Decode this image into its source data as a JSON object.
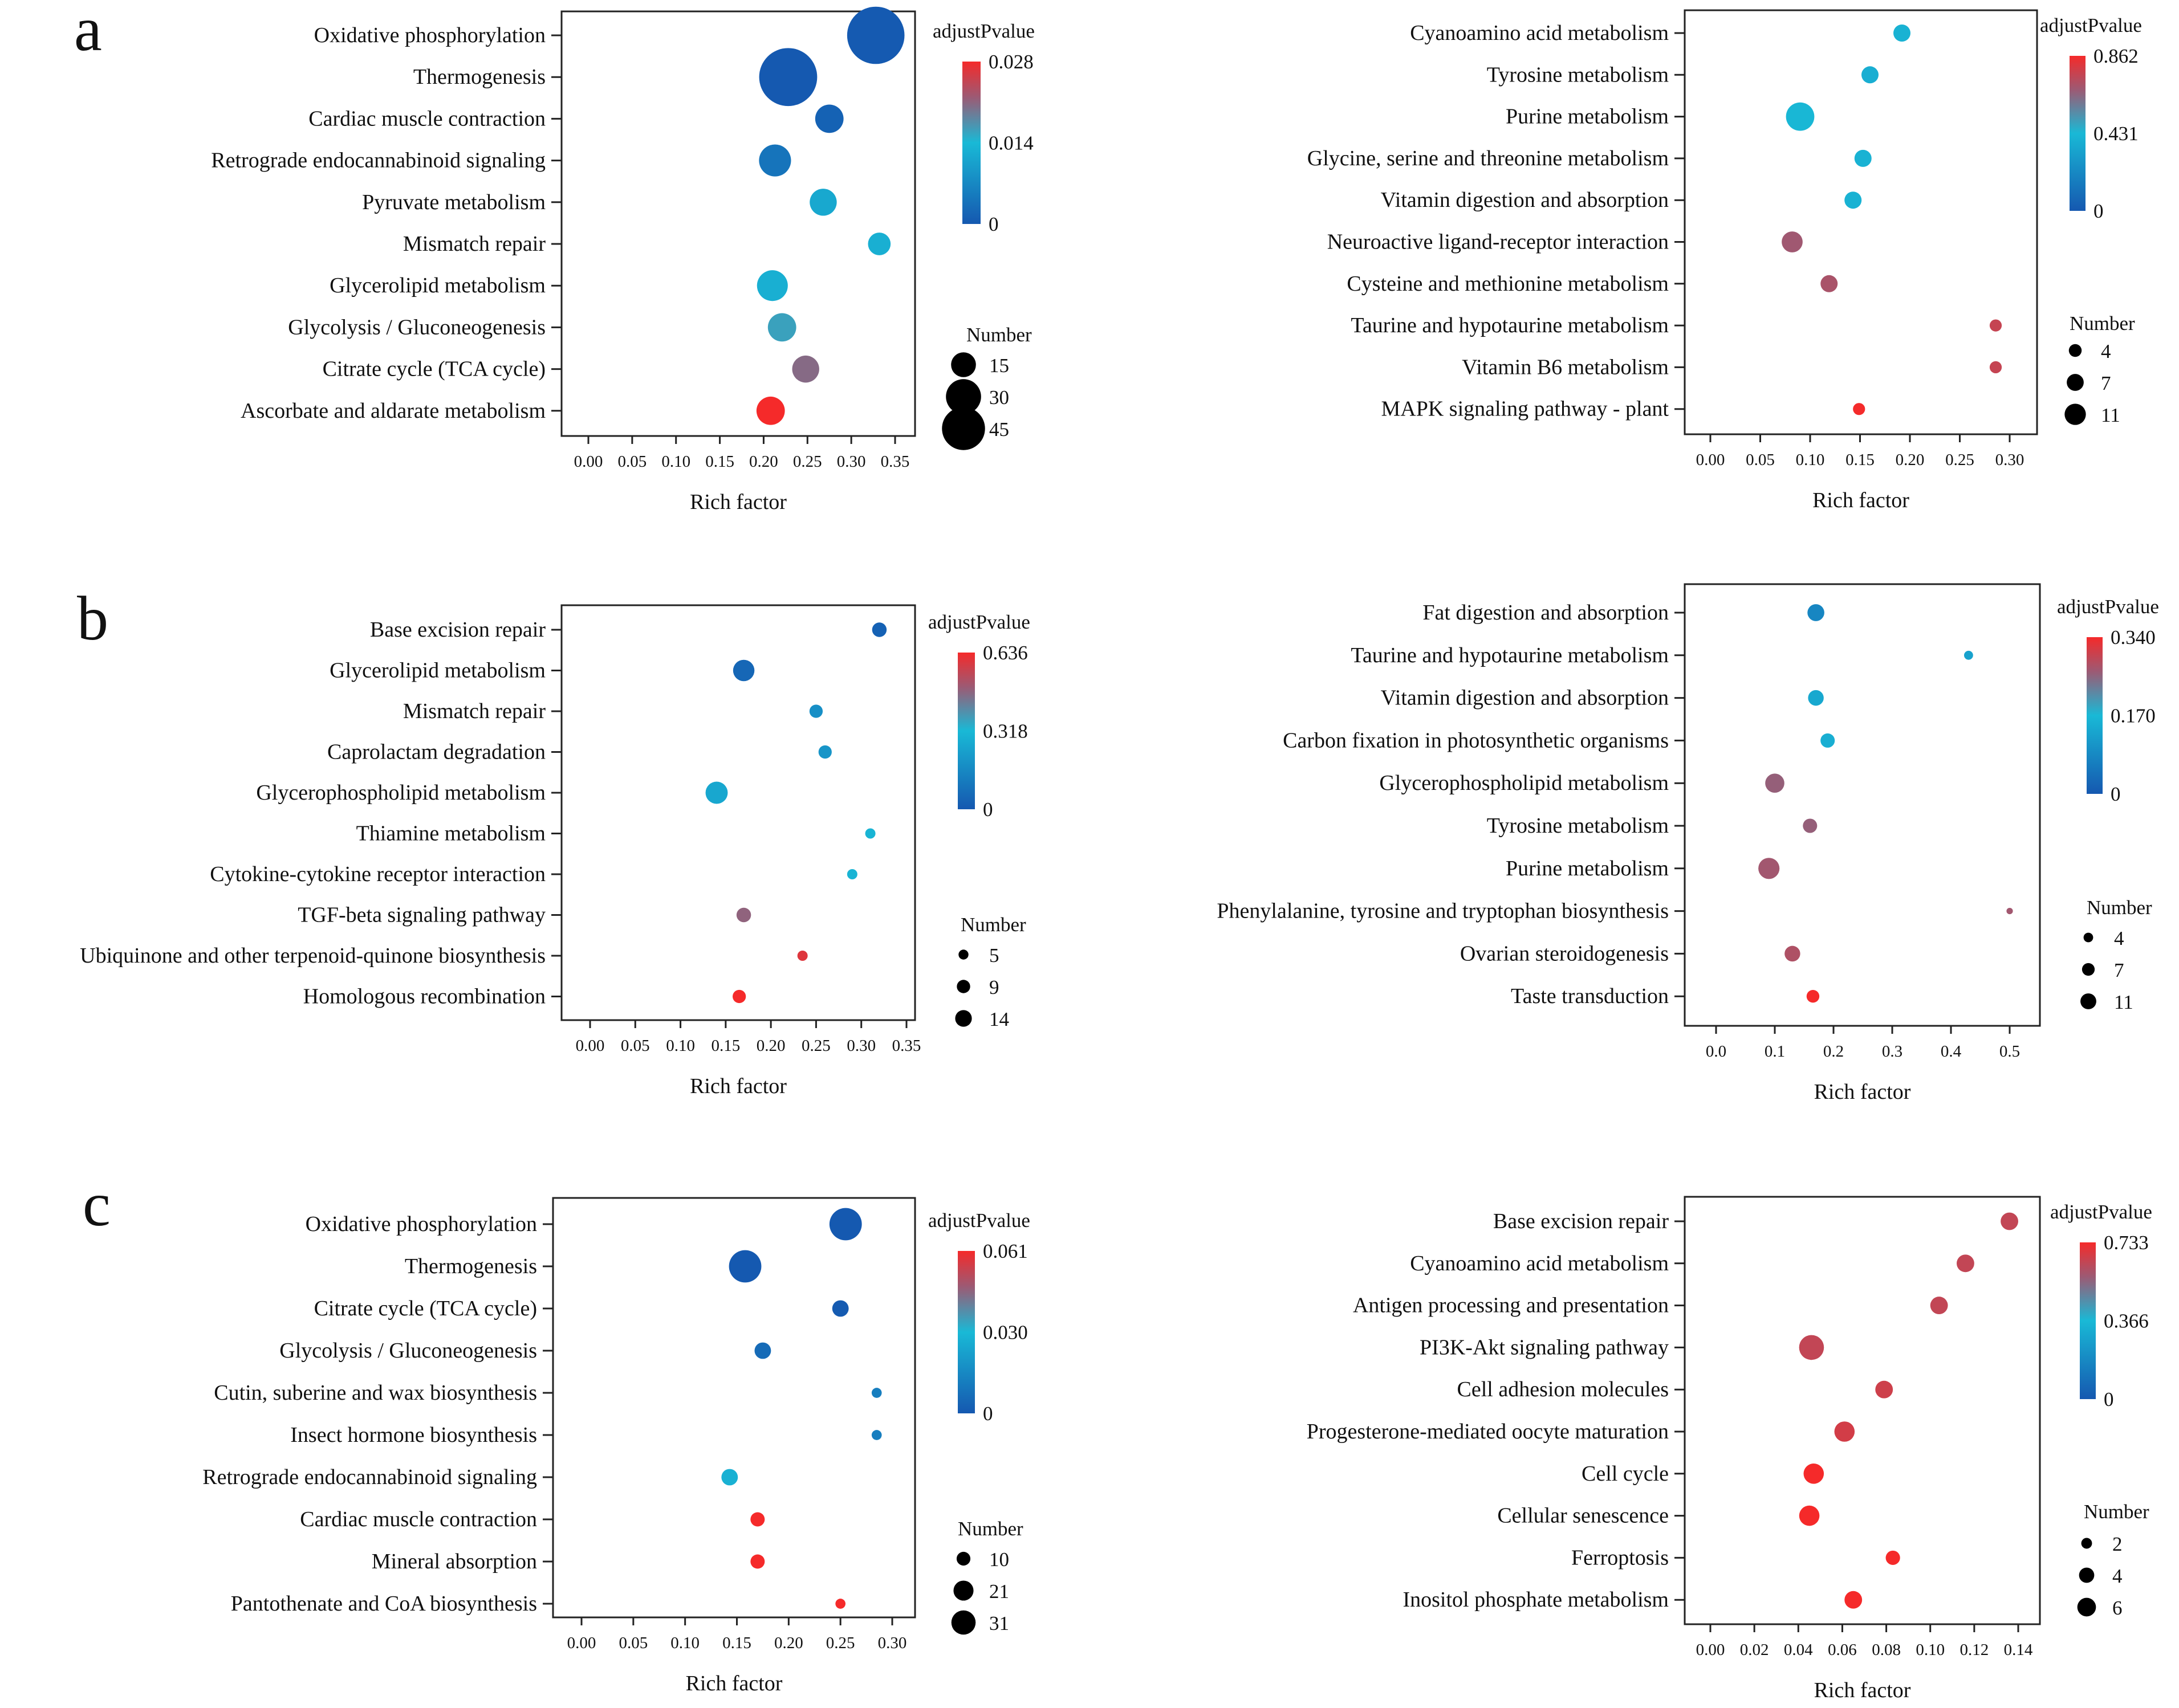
{
  "figure": {
    "panel_labels": [
      "a",
      "b",
      "c"
    ],
    "colorbar_title": "adjustPvalue",
    "size_legend_title": "Number",
    "xlabel": "Rich factor"
  },
  "colors": {
    "highlight_text": "#e8302a",
    "normal_text": "#111111",
    "scale_low": "#1558b0",
    "scale_mid": "#19b9d6",
    "scale_high": "#f52a2a",
    "scale_mid_high": "#9c5a74"
  },
  "chart_data": [
    {
      "panel": "a",
      "side": "left",
      "type": "scatter",
      "xlabel": "Rich factor",
      "xlim": [
        0,
        0.35
      ],
      "xticks": [
        "0.00",
        "0.05",
        "0.10",
        "0.15",
        "0.20",
        "0.25",
        "0.30",
        "0.35"
      ],
      "colorbar": {
        "title": "adjustPvalue",
        "ticks": [
          "0.028",
          "0.014",
          "0"
        ],
        "max": 0.028
      },
      "size_legend": {
        "title": "Number",
        "values": [
          15,
          30,
          45
        ]
      },
      "categories": [
        "Oxidative phosphorylation",
        "Thermogenesis",
        "Cardiac muscle contraction",
        "Retrograde endocannabinoid signaling",
        "Pyruvate metabolism",
        "Mismatch repair",
        "Glycerolipid metabolism",
        "Glycolysis / Gluconeogenesis",
        "Citrate cycle (TCA cycle)",
        "Ascorbate and aldarate metabolism"
      ],
      "highlighted": [
        true,
        true,
        false,
        false,
        false,
        false,
        false,
        true,
        true,
        true
      ],
      "x": [
        0.328,
        0.228,
        0.275,
        0.213,
        0.268,
        0.332,
        0.21,
        0.221,
        0.248,
        0.208
      ],
      "number": [
        45,
        46,
        11,
        14,
        10,
        7,
        13,
        11,
        10,
        11
      ],
      "adjustPvalue": [
        0.0003,
        0.0001,
        0.0015,
        0.004,
        0.0115,
        0.0125,
        0.0125,
        0.016,
        0.0205,
        0.028
      ]
    },
    {
      "panel": "a",
      "side": "right",
      "type": "scatter",
      "xlabel": "Rich factor",
      "xlim": [
        0,
        0.3
      ],
      "xticks": [
        "0.00",
        "0.05",
        "0.10",
        "0.15",
        "0.20",
        "0.25",
        "0.30"
      ],
      "colorbar": {
        "title": "adjustPvalue",
        "ticks": [
          "0.862",
          "0.431",
          "0"
        ],
        "max": 0.862
      },
      "size_legend": {
        "title": "Number",
        "values": [
          4,
          7,
          11
        ]
      },
      "categories": [
        "Cyanoamino acid metabolism",
        "Tyrosine metabolism",
        "Purine metabolism",
        "Glycine, serine and threonine metabolism",
        "Vitamin digestion and absorption",
        "Neuroactive ligand-receptor interaction",
        "Cysteine and methionine metabolism",
        "Taurine and hypotaurine metabolism",
        "Vitamin B6 metabolism",
        "MAPK signaling pathway - plant"
      ],
      "highlighted": [
        false,
        false,
        false,
        false,
        false,
        false,
        false,
        false,
        false,
        false
      ],
      "x": [
        0.192,
        0.16,
        0.09,
        0.153,
        0.143,
        0.082,
        0.119,
        0.286,
        0.286,
        0.149
      ],
      "number": [
        4,
        4,
        11,
        4,
        4,
        6,
        4,
        2,
        2,
        2
      ],
      "adjustPvalue": [
        0.4,
        0.38,
        0.42,
        0.4,
        0.4,
        0.68,
        0.7,
        0.76,
        0.76,
        0.86
      ]
    },
    {
      "panel": "b",
      "side": "left",
      "type": "scatter",
      "xlabel": "Rich factor",
      "xlim": [
        0,
        0.35
      ],
      "xticks": [
        "0.00",
        "0.05",
        "0.10",
        "0.15",
        "0.20",
        "0.25",
        "0.30",
        "0.35"
      ],
      "colorbar": {
        "title": "adjustPvalue",
        "ticks": [
          "0.636",
          "0.318",
          "0"
        ],
        "max": 0.636
      },
      "size_legend": {
        "title": "Number",
        "values": [
          5,
          9,
          14
        ]
      },
      "categories": [
        "Base excision repair",
        "Glycerolipid metabolism",
        "Mismatch repair",
        "Caprolactam degradation",
        "Glycerophospholipid metabolism",
        "Thiamine metabolism",
        "Cytokine-cytokine receptor interaction",
        "TGF-beta signaling pathway",
        "Ubiquinone and other terpenoid-quinone biosynthesis",
        "Homologous recombination"
      ],
      "highlighted": [
        false,
        true,
        false,
        false,
        false,
        false,
        false,
        false,
        false,
        false
      ],
      "x": [
        0.32,
        0.17,
        0.25,
        0.26,
        0.14,
        0.31,
        0.29,
        0.17,
        0.235,
        0.165
      ],
      "number": [
        6,
        13,
        5,
        5,
        14,
        3,
        3,
        6,
        3,
        5
      ],
      "adjustPvalue": [
        0.03,
        0.05,
        0.18,
        0.2,
        0.26,
        0.3,
        0.3,
        0.48,
        0.6,
        0.636
      ]
    },
    {
      "panel": "b",
      "side": "right",
      "type": "scatter",
      "xlabel": "Rich factor",
      "xlim": [
        0,
        0.5
      ],
      "xticks": [
        "0.0",
        "0.1",
        "0.2",
        "0.3",
        "0.4",
        "0.5"
      ],
      "colorbar": {
        "title": "adjustPvalue",
        "ticks": [
          "0.340",
          "0.170",
          "0"
        ],
        "max": 0.34
      },
      "size_legend": {
        "title": "Number",
        "values": [
          4,
          7,
          11
        ]
      },
      "categories": [
        "Fat digestion and absorption",
        "Taurine and hypotaurine metabolism",
        "Vitamin digestion and absorption",
        "Carbon fixation in photosynthetic organisms",
        "Glycerophospholipid metabolism",
        "Tyrosine metabolism",
        "Purine metabolism",
        "Phenylalanine, tyrosine and tryptophan biosynthesis",
        "Ovarian steroidogenesis",
        "Taste transduction"
      ],
      "highlighted": [
        false,
        false,
        false,
        false,
        false,
        false,
        false,
        false,
        false,
        false
      ],
      "x": [
        0.17,
        0.43,
        0.17,
        0.19,
        0.1,
        0.16,
        0.09,
        0.5,
        0.13,
        0.165
      ],
      "number": [
        7,
        2,
        6,
        5,
        9,
        5,
        11,
        1,
        6,
        4
      ],
      "adjustPvalue": [
        0.08,
        0.13,
        0.14,
        0.15,
        0.26,
        0.26,
        0.27,
        0.27,
        0.28,
        0.34
      ]
    },
    {
      "panel": "c",
      "side": "left",
      "type": "scatter",
      "xlabel": "Rich factor",
      "xlim": [
        0,
        0.3
      ],
      "xticks": [
        "0.00",
        "0.05",
        "0.10",
        "0.15",
        "0.20",
        "0.25",
        "0.30"
      ],
      "colorbar": {
        "title": "adjustPvalue",
        "ticks": [
          "0.061",
          "0.030",
          "0"
        ],
        "max": 0.061
      },
      "size_legend": {
        "title": "Number",
        "values": [
          10,
          21,
          31
        ]
      },
      "categories": [
        "Oxidative phosphorylation",
        "Thermogenesis",
        "Citrate cycle (TCA cycle)",
        "Glycolysis / Gluconeogenesis",
        "Cutin, suberine and wax biosynthesis",
        "Insect hormone biosynthesis",
        "Retrograde endocannabinoid signaling",
        "Cardiac muscle contraction",
        "Mineral absorption",
        "Pantothenate and CoA biosynthesis"
      ],
      "highlighted": [
        true,
        true,
        true,
        true,
        false,
        false,
        false,
        false,
        false,
        false
      ],
      "x": [
        0.255,
        0.158,
        0.25,
        0.175,
        0.285,
        0.285,
        0.143,
        0.17,
        0.17,
        0.25
      ],
      "number": [
        31,
        31,
        8,
        8,
        3,
        3,
        8,
        6,
        6,
        3
      ],
      "adjustPvalue": [
        0.0002,
        0.0002,
        0.0008,
        0.006,
        0.012,
        0.012,
        0.028,
        0.061,
        0.061,
        0.061
      ]
    },
    {
      "panel": "c",
      "side": "right",
      "type": "scatter",
      "xlabel": "Rich factor",
      "xlim": [
        0,
        0.14
      ],
      "xticks": [
        "0.00",
        "0.02",
        "0.04",
        "0.06",
        "0.08",
        "0.10",
        "0.12",
        "0.14"
      ],
      "colorbar": {
        "title": "adjustPvalue",
        "ticks": [
          "0.733",
          "0.366",
          "0"
        ],
        "max": 0.733
      },
      "size_legend": {
        "title": "Number",
        "values": [
          2,
          4,
          6
        ]
      },
      "categories": [
        "Base excision repair",
        "Cyanoamino acid metabolism",
        "Antigen processing and presentation",
        "PI3K-Akt signaling pathway",
        "Cell adhesion molecules",
        "Progesterone-mediated oocyte maturation",
        "Cell cycle",
        "Cellular senescence",
        "Ferroptosis",
        "Inositol phosphate metabolism"
      ],
      "highlighted": [
        false,
        false,
        false,
        false,
        false,
        false,
        false,
        false,
        false,
        false
      ],
      "x": [
        0.136,
        0.116,
        0.104,
        0.046,
        0.079,
        0.061,
        0.047,
        0.045,
        0.083,
        0.065
      ],
      "number": [
        3,
        3,
        3,
        6,
        3,
        4,
        4,
        4,
        2,
        3
      ],
      "adjustPvalue": [
        0.64,
        0.64,
        0.64,
        0.64,
        0.66,
        0.67,
        0.733,
        0.733,
        0.733,
        0.733
      ]
    }
  ]
}
